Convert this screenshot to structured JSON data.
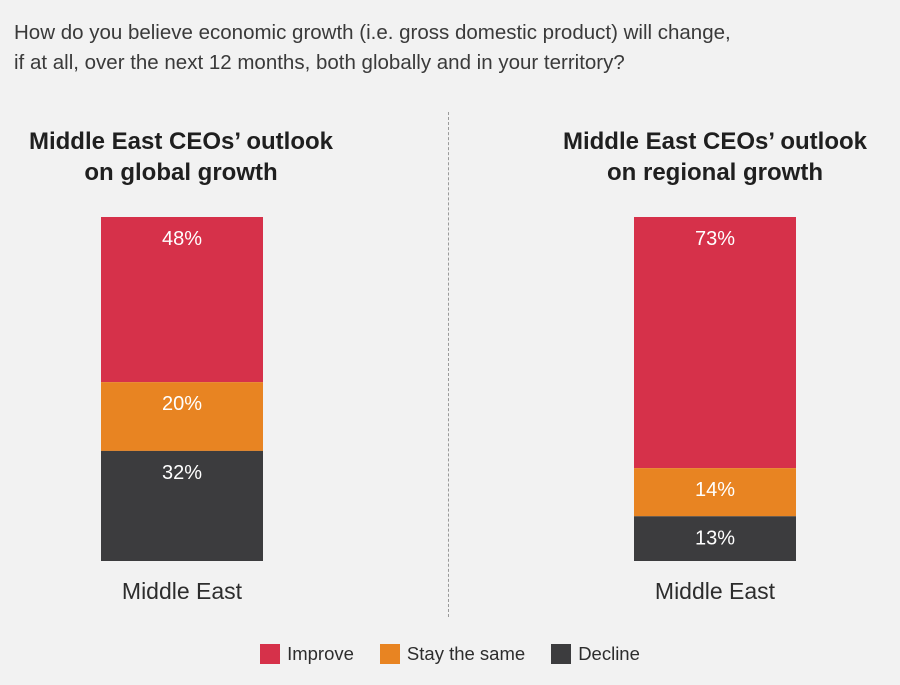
{
  "question": {
    "line1": "How do you believe economic growth (i.e. gross domestic product) will change,",
    "line2": "if at all, over the next 12 months, both globally and in your territory?"
  },
  "legend": [
    {
      "label": "Improve",
      "color": "#d6314a"
    },
    {
      "label": "Stay the same",
      "color": "#e88422"
    },
    {
      "label": "Decline",
      "color": "#3c3c3e"
    }
  ],
  "chart_data": [
    {
      "type": "bar",
      "stacked": true,
      "title_line1": "Middle East CEOs’ outlook",
      "title_line2": "on global growth",
      "categories": [
        "Middle East"
      ],
      "series": [
        {
          "name": "Improve",
          "values": [
            48
          ],
          "label": "48%",
          "color": "#d6314a"
        },
        {
          "name": "Stay the same",
          "values": [
            20
          ],
          "label": "20%",
          "color": "#e88422"
        },
        {
          "name": "Decline",
          "values": [
            32
          ],
          "label": "32%",
          "color": "#3c3c3e"
        }
      ],
      "ylim": [
        0,
        100
      ]
    },
    {
      "type": "bar",
      "stacked": true,
      "title_line1": "Middle East CEOs’ outlook",
      "title_line2": "on regional growth",
      "categories": [
        "Middle East"
      ],
      "series": [
        {
          "name": "Improve",
          "values": [
            73
          ],
          "label": "73%",
          "color": "#d6314a"
        },
        {
          "name": "Stay the same",
          "values": [
            14
          ],
          "label": "14%",
          "color": "#e88422"
        },
        {
          "name": "Decline",
          "values": [
            13
          ],
          "label": "13%",
          "color": "#3c3c3e"
        }
      ],
      "ylim": [
        0,
        100
      ]
    }
  ]
}
